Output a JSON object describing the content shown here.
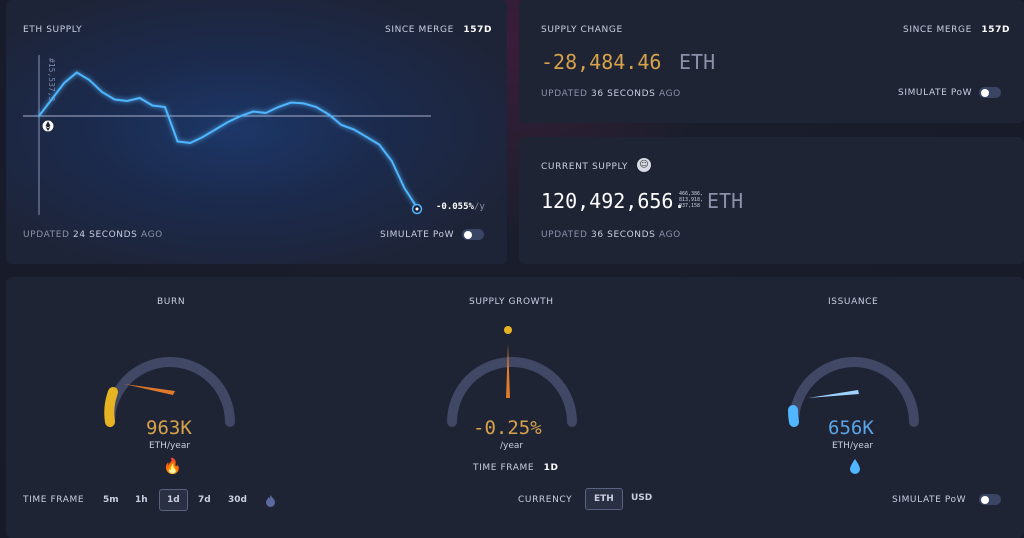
{
  "eth_supply": {
    "title": "ETH SUPPLY",
    "since_merge_label": "SINCE MERGE",
    "since_merge_value": "157d",
    "start_label": "#15,537,3",
    "end_rate_value": "-0.055%",
    "end_rate_unit": "/y",
    "updated_prefix": "UPDATED",
    "updated_value": "24 SECONDS",
    "updated_suffix": "AGO",
    "simulate_label": "SIMULATE PoW",
    "simulate_on": false,
    "line_color": "#4fb6ff",
    "icon": "eth-logo-icon",
    "end_icon": "dot-icon"
  },
  "chart_data": {
    "type": "line",
    "title": "ETH SUPPLY",
    "xlabel": "",
    "ylabel": "",
    "baseline": 0,
    "series": [
      {
        "values": [
          0,
          0.55,
          1.1,
          1.45,
          1.2,
          0.8,
          0.55,
          0.5,
          0.6,
          0.35,
          0.3,
          -0.85,
          -0.9,
          -0.7,
          -0.45,
          -0.2,
          0.0,
          0.15,
          0.1,
          0.3,
          0.45,
          0.42,
          0.3,
          0.05,
          -0.3,
          -0.45,
          -0.7,
          -0.95,
          -1.5,
          -2.4,
          -3.05
        ]
      }
    ]
  },
  "supply_change": {
    "title": "SUPPLY CHANGE",
    "since_merge_label": "SINCE MERGE",
    "since_merge_value": "157d",
    "value": "-28,484.46",
    "unit": "ETH",
    "updated_prefix": "UPDATED",
    "updated_value": "36 SECONDS",
    "updated_suffix": "AGO",
    "simulate_label": "SIMULATE PoW",
    "value_color": "#d7a24a"
  },
  "current_supply": {
    "title": "CURRENT SUPPLY",
    "icon": "face-icon",
    "value_main": "120,492,656.",
    "decimals_line1": "466,386,",
    "decimals_line2": "813,918,",
    "decimals_line3": "037,158",
    "unit": "ETH",
    "updated_prefix": "UPDATED",
    "updated_value": "36 SECONDS",
    "updated_suffix": "AGO"
  },
  "gauges": {
    "burn": {
      "title": "BURN",
      "value": "963K",
      "unit": "ETH/year",
      "icon": "fire-icon",
      "color": "#d7a24a",
      "fill": 0.3
    },
    "growth": {
      "title": "SUPPLY GROWTH",
      "value": "-0.25%",
      "unit": "/year",
      "color": "#d7a24a",
      "fill": 0.03
    },
    "issuance": {
      "title": "ISSUANCE",
      "value": "656K",
      "unit": "ETH/year",
      "icon": "droplet-icon",
      "color": "#5ba4e6",
      "fill": 0.2
    }
  },
  "controls": {
    "time_frame_label": "TIME FRAME",
    "time_frames": [
      "5m",
      "1h",
      "1d",
      "7d",
      "30d"
    ],
    "active_time_frame": "1d",
    "merge_icon": "merge-flame-icon",
    "growth_time_frame_label": "TIME FRAME",
    "growth_time_frame_value": "1d",
    "currency_label": "CURRENCY",
    "currencies": [
      "ETH",
      "USD"
    ],
    "active_currency": "ETH",
    "simulate_label": "SIMULATE PoW"
  }
}
